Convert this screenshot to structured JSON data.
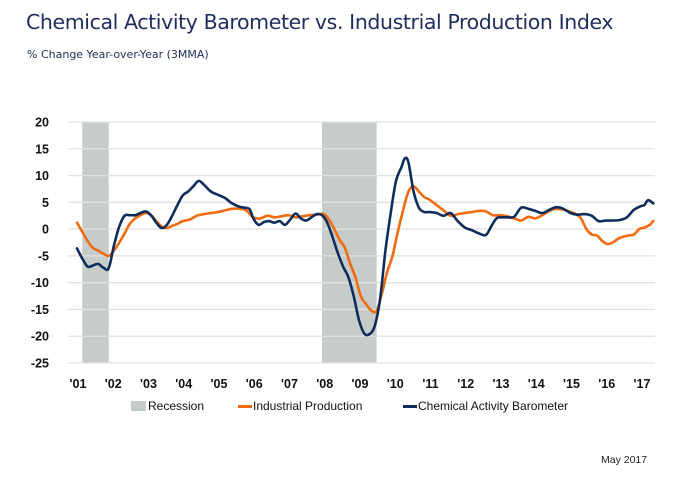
{
  "header": {
    "title": "Chemical Activity Barometer vs. Industrial Production Index",
    "subtitle": "% Change Year-over-Year (3MMA)"
  },
  "footer": {
    "date_note": "May 2017"
  },
  "colors": {
    "title": "#1f2d5e",
    "industrial_production": "#f26b0f",
    "chemical_activity_barometer": "#0f2d5c",
    "recession": "#c5ccc9",
    "grid": "#e1e1e1"
  },
  "chart_data": {
    "type": "line",
    "title": "Chemical Activity Barometer vs. Industrial Production Index",
    "subtitle": "% Change Year-over-Year (3MMA)",
    "xlabel": "",
    "ylabel": "",
    "ylim": [
      -25,
      20
    ],
    "xlim": [
      2001.0,
      2017.35
    ],
    "y_ticks": [
      "20",
      "15",
      "10",
      "5",
      "0",
      "-5",
      "-10",
      "-15",
      "-20",
      "-25"
    ],
    "y_tick_values": [
      20,
      15,
      10,
      5,
      0,
      -5,
      -10,
      -15,
      -20,
      -25
    ],
    "x_ticks": [
      "'01",
      "'02",
      "'03",
      "'04",
      "'05",
      "'06",
      "'07",
      "'08",
      "'09",
      "'10",
      "'11",
      "'12",
      "'13",
      "'14",
      "'15",
      "'16",
      "'17"
    ],
    "x_tick_values": [
      2001,
      2002,
      2003,
      2004,
      2005,
      2006,
      2007,
      2008,
      2009,
      2010,
      2011,
      2012,
      2013,
      2014,
      2015,
      2016,
      2017
    ],
    "grid": "horizontal",
    "legend": {
      "position": "bottom",
      "entries": [
        "Recession",
        "Industrial Production",
        "Chemical Activity Barometer"
      ]
    },
    "recessions": [
      {
        "label": "Recession",
        "start": 2001.15,
        "end": 2001.9
      },
      {
        "label": "Recession",
        "start": 2007.95,
        "end": 2009.5
      }
    ],
    "series": [
      {
        "name": "Industrial Production",
        "color": "#f26b0f",
        "x": [
          2001.0,
          2001.15,
          2001.3,
          2001.45,
          2001.6,
          2001.75,
          2001.9,
          2002.05,
          2002.2,
          2002.35,
          2002.5,
          2002.65,
          2002.8,
          2002.95,
          2003.1,
          2003.25,
          2003.4,
          2003.55,
          2003.7,
          2003.85,
          2004.0,
          2004.2,
          2004.4,
          2004.6,
          2004.8,
          2005.0,
          2005.2,
          2005.4,
          2005.6,
          2005.8,
          2006.0,
          2006.2,
          2006.4,
          2006.6,
          2006.8,
          2007.0,
          2007.2,
          2007.4,
          2007.6,
          2007.8,
          2008.0,
          2008.15,
          2008.3,
          2008.45,
          2008.6,
          2008.75,
          2008.9,
          2009.05,
          2009.2,
          2009.35,
          2009.5,
          2009.65,
          2009.8,
          2009.95,
          2010.1,
          2010.25,
          2010.4,
          2010.55,
          2010.7,
          2010.85,
          2011.0,
          2011.2,
          2011.4,
          2011.6,
          2011.8,
          2012.0,
          2012.2,
          2012.4,
          2012.6,
          2012.8,
          2013.0,
          2013.2,
          2013.4,
          2013.6,
          2013.8,
          2014.0,
          2014.2,
          2014.4,
          2014.6,
          2014.8,
          2015.0,
          2015.15,
          2015.3,
          2015.45,
          2015.6,
          2015.75,
          2015.9,
          2016.05,
          2016.2,
          2016.35,
          2016.5,
          2016.65,
          2016.8,
          2016.95,
          2017.1,
          2017.25,
          2017.35
        ],
        "values": [
          1.2,
          -0.5,
          -2.2,
          -3.5,
          -4.0,
          -4.6,
          -5.0,
          -4.0,
          -2.5,
          -0.8,
          1.0,
          2.0,
          2.6,
          3.0,
          2.6,
          1.5,
          0.5,
          0.2,
          0.6,
          1.0,
          1.5,
          1.8,
          2.5,
          2.8,
          3.0,
          3.2,
          3.5,
          3.8,
          3.8,
          3.5,
          2.2,
          2.0,
          2.5,
          2.2,
          2.4,
          2.6,
          2.2,
          2.4,
          2.6,
          2.7,
          2.8,
          1.8,
          0,
          -2,
          -3.5,
          -6.5,
          -9,
          -12.5,
          -14,
          -15.2,
          -15.3,
          -12,
          -8,
          -5,
          -0.5,
          3.5,
          7.0,
          8.0,
          7.0,
          6.0,
          5.5,
          4.5,
          3.5,
          2.5,
          2.8,
          3.0,
          3.2,
          3.4,
          3.3,
          2.6,
          2.6,
          2.4,
          2.0,
          1.6,
          2.3,
          2.0,
          2.6,
          3.4,
          3.8,
          3.6,
          3.2,
          2.8,
          2.0,
          0,
          -1.0,
          -1.2,
          -2.2,
          -2.8,
          -2.5,
          -1.8,
          -1.4,
          -1.2,
          -1.0,
          0.0,
          0.3,
          0.8,
          1.5
        ]
      },
      {
        "name": "Chemical Activity Barometer",
        "color": "#0f2d5c",
        "x": [
          2001.0,
          2001.15,
          2001.3,
          2001.45,
          2001.6,
          2001.75,
          2001.9,
          2002.05,
          2002.2,
          2002.35,
          2002.5,
          2002.65,
          2002.8,
          2002.95,
          2003.1,
          2003.25,
          2003.4,
          2003.55,
          2003.7,
          2003.85,
          2004.0,
          2004.15,
          2004.3,
          2004.45,
          2004.6,
          2004.8,
          2005.0,
          2005.2,
          2005.4,
          2005.6,
          2005.75,
          2005.9,
          2006.0,
          2006.15,
          2006.3,
          2006.45,
          2006.6,
          2006.75,
          2006.9,
          2007.05,
          2007.2,
          2007.35,
          2007.5,
          2007.65,
          2007.8,
          2007.95,
          2008.1,
          2008.25,
          2008.4,
          2008.55,
          2008.7,
          2008.85,
          2009.0,
          2009.15,
          2009.3,
          2009.45,
          2009.6,
          2009.75,
          2009.9,
          2010.05,
          2010.2,
          2010.3,
          2010.4,
          2010.55,
          2010.7,
          2010.85,
          2011.0,
          2011.2,
          2011.4,
          2011.6,
          2011.8,
          2012.0,
          2012.2,
          2012.4,
          2012.6,
          2012.75,
          2012.9,
          2013.05,
          2013.2,
          2013.4,
          2013.6,
          2013.8,
          2014.0,
          2014.2,
          2014.4,
          2014.6,
          2014.8,
          2015.0,
          2015.2,
          2015.4,
          2015.6,
          2015.8,
          2016.0,
          2016.2,
          2016.4,
          2016.6,
          2016.8,
          2017.0,
          2017.1,
          2017.2,
          2017.35
        ],
        "values": [
          -3.6,
          -5.5,
          -7.0,
          -6.8,
          -6.5,
          -7.2,
          -7.3,
          -3.0,
          0.5,
          2.5,
          2.6,
          2.6,
          3.0,
          3.3,
          2.6,
          1.2,
          0.2,
          0.8,
          2.5,
          4.5,
          6.3,
          7.0,
          8.0,
          9.0,
          8.3,
          7.0,
          6.4,
          5.8,
          4.8,
          4.2,
          4.0,
          3.7,
          2.0,
          0.8,
          1.3,
          1.5,
          1.2,
          1.5,
          0.8,
          1.8,
          2.9,
          2.0,
          1.6,
          2.2,
          2.8,
          2.6,
          1.2,
          -1.5,
          -4.5,
          -7.0,
          -9.0,
          -12.5,
          -17.0,
          -19.5,
          -19.6,
          -18.0,
          -13.0,
          -4.0,
          3.0,
          9.0,
          11.5,
          13.2,
          12.5,
          7.0,
          4.0,
          3.2,
          3.2,
          3.0,
          2.5,
          3.0,
          1.5,
          0.3,
          -0.2,
          -0.8,
          -1.1,
          0.5,
          2.0,
          2.2,
          2.2,
          2.3,
          4.0,
          3.8,
          3.4,
          3.0,
          3.6,
          4.1,
          3.8,
          3.0,
          2.7,
          2.8,
          2.5,
          1.5,
          1.6,
          1.6,
          1.7,
          2.2,
          3.6,
          4.3,
          4.5,
          5.4,
          4.8
        ]
      }
    ]
  }
}
